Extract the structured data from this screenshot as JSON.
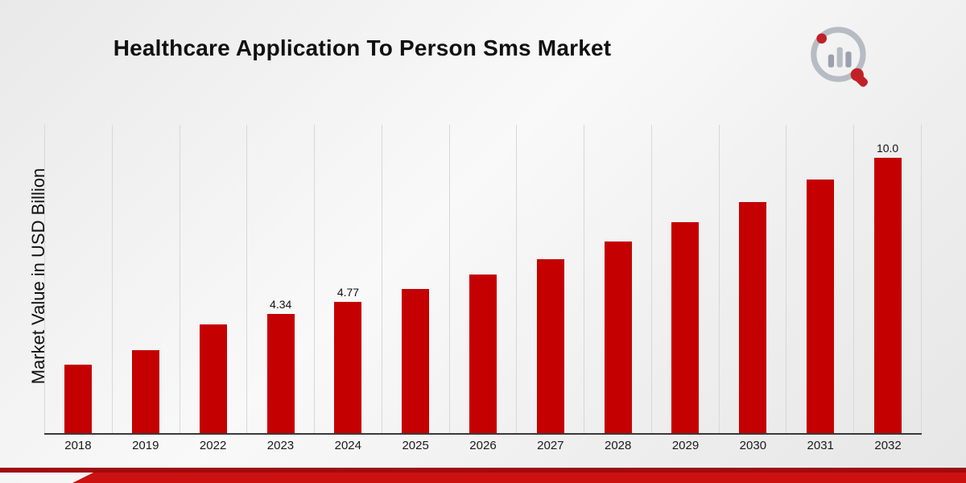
{
  "title": "Healthcare Application To Person Sms Market",
  "chart_data": {
    "type": "bar",
    "title": "Healthcare Application To Person Sms Market",
    "xlabel": "",
    "ylabel": "Market Value in USD Billion",
    "categories": [
      "2018",
      "2019",
      "2022",
      "2023",
      "2024",
      "2025",
      "2026",
      "2027",
      "2028",
      "2029",
      "2030",
      "2031",
      "2032"
    ],
    "values": [
      2.5,
      3.0,
      3.95,
      4.34,
      4.77,
      5.24,
      5.76,
      6.33,
      6.96,
      7.65,
      8.4,
      9.2,
      10.0
    ],
    "point_labels": [
      "",
      "",
      "",
      "4.34",
      "4.77",
      "",
      "",
      "",
      "",
      "",
      "",
      "",
      "10.0"
    ],
    "ylim": [
      0,
      11.2
    ],
    "bar_color": "#c40000",
    "grid": "vertical",
    "legend_position": "none"
  },
  "logo": {
    "name": "market-research-future-logo"
  },
  "footer": {
    "line_color": "#9e0b0f",
    "band_color": "#cc1111"
  }
}
